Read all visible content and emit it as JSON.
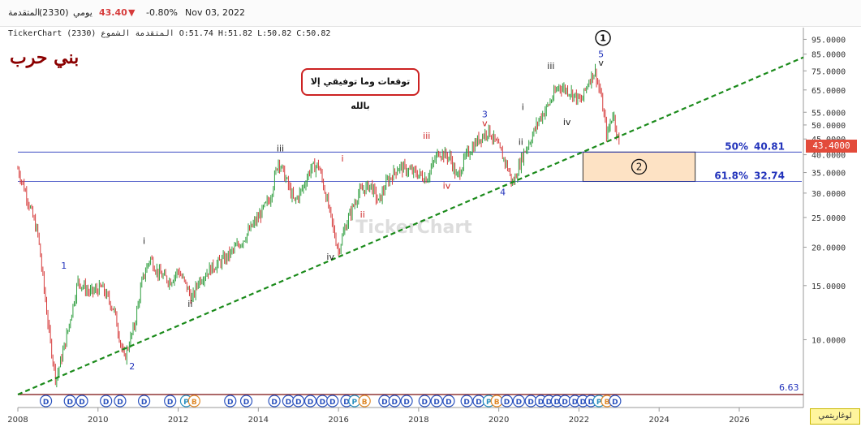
{
  "header": {
    "symbol_name": "المتقدمة",
    "symbol_code": "(2330)",
    "period": "يومي",
    "last_price": "43.40",
    "change_arrow": "▼",
    "change_pct": "-0.80%",
    "date": "Nov 03, 2022"
  },
  "subheader": "TickerChart المتقدمة الشموع (2330) O:51.74 H:51.82 L:50.82 C:50.82",
  "chart_title": "بني حرب",
  "note_box": "توقعات وما توفيقي إلا بالله",
  "watermark": "TickerChart",
  "current_price_tag": "43.4000",
  "log_button": "لوغاريتمي",
  "colors": {
    "up": "#2e9e3e",
    "down": "#d63b3b",
    "trendline": "#1a8a1a",
    "fib_line": "#2233bb",
    "target_box": "#fde2c4",
    "wave_blue": "#2233bb",
    "wave_red": "#cc2222"
  },
  "chart_data": {
    "type": "line",
    "scale": "log",
    "xlim": [
      2008.0,
      2027.6
    ],
    "ylim": [
      6.63,
      100
    ],
    "x_ticks": [
      "2008",
      "2010",
      "2012",
      "2014",
      "2016",
      "2018",
      "2020",
      "2022",
      "2024",
      "2026"
    ],
    "y_ticks": [
      "95.0000",
      "85.0000",
      "75.0000",
      "65.0000",
      "55.0000",
      "50.0000",
      "45.0000",
      "40.0000",
      "35.0000",
      "30.0000",
      "25.0000",
      "20.0000",
      "15.0000",
      "10.0000"
    ],
    "y_min_label": "6.63",
    "series": [
      {
        "values": [
          [
            2008.0,
            36
          ],
          [
            2008.2,
            30
          ],
          [
            2008.5,
            22
          ],
          [
            2008.8,
            10
          ],
          [
            2008.95,
            7.4
          ],
          [
            2009.2,
            10
          ],
          [
            2009.5,
            15.5
          ],
          [
            2009.8,
            14.2
          ],
          [
            2010.1,
            14.8
          ],
          [
            2010.4,
            12.5
          ],
          [
            2010.65,
            8.6
          ],
          [
            2010.9,
            11
          ],
          [
            2011.1,
            15.5
          ],
          [
            2011.3,
            18.5
          ],
          [
            2011.5,
            16.5
          ],
          [
            2011.8,
            15.5
          ],
          [
            2012.0,
            16.8
          ],
          [
            2012.2,
            15.0
          ],
          [
            2012.35,
            13.5
          ],
          [
            2012.5,
            15.5
          ],
          [
            2012.8,
            17.0
          ],
          [
            2013.2,
            18.5
          ],
          [
            2013.6,
            21.0
          ],
          [
            2014.0,
            25.0
          ],
          [
            2014.3,
            29.0
          ],
          [
            2014.5,
            38.5
          ],
          [
            2014.7,
            33.0
          ],
          [
            2014.9,
            28.0
          ],
          [
            2015.1,
            31.0
          ],
          [
            2015.3,
            36.0
          ],
          [
            2015.5,
            37.0
          ],
          [
            2015.7,
            29.0
          ],
          [
            2015.9,
            22.0
          ],
          [
            2016.0,
            19.5
          ],
          [
            2016.2,
            24.0
          ],
          [
            2016.5,
            30.0
          ],
          [
            2016.8,
            32.0
          ],
          [
            2017.0,
            28.0
          ],
          [
            2017.2,
            32.5
          ],
          [
            2017.5,
            36.5
          ],
          [
            2017.9,
            35.0
          ],
          [
            2018.2,
            33.5
          ],
          [
            2018.5,
            41.0
          ],
          [
            2018.8,
            39.0
          ],
          [
            2018.95,
            33.5
          ],
          [
            2019.2,
            40.0
          ],
          [
            2019.5,
            45.0
          ],
          [
            2019.75,
            48.0
          ],
          [
            2020.0,
            42.0
          ],
          [
            2020.2,
            37.0
          ],
          [
            2020.35,
            32.0
          ],
          [
            2020.6,
            40.0
          ],
          [
            2020.8,
            45.0
          ],
          [
            2021.0,
            52.0
          ],
          [
            2021.2,
            57.0
          ],
          [
            2021.5,
            67.0
          ],
          [
            2021.8,
            64.0
          ],
          [
            2022.05,
            59.5
          ],
          [
            2022.25,
            70.0
          ],
          [
            2022.4,
            75.0
          ],
          [
            2022.55,
            62.0
          ],
          [
            2022.7,
            46.0
          ],
          [
            2022.85,
            55.0
          ],
          [
            2023.0,
            43.4
          ]
        ]
      }
    ],
    "trendline": [
      [
        2008.0,
        6.63
      ],
      [
        2027.6,
        83.0
      ]
    ],
    "fib_levels": [
      {
        "label": "50%",
        "value": 40.81,
        "value_label": "40.81"
      },
      {
        "label": "61.8%",
        "value": 32.74,
        "value_label": "32.74"
      }
    ],
    "target_zone": {
      "x0": 2022.1,
      "x1": 2024.9,
      "y0": 32.74,
      "y1": 40.81,
      "label": "2"
    },
    "wave_labels": [
      {
        "text": "1",
        "x": 2009.15,
        "y": 17.0,
        "color": "blue"
      },
      {
        "text": "2",
        "x": 2010.85,
        "y": 8.0,
        "color": "blue"
      },
      {
        "text": "i",
        "x": 2011.15,
        "y": 20.5,
        "color": "black"
      },
      {
        "text": "ii",
        "x": 2012.3,
        "y": 12.8,
        "color": "black"
      },
      {
        "text": "iii",
        "x": 2014.55,
        "y": 41.0,
        "color": "black"
      },
      {
        "text": "iv",
        "x": 2015.8,
        "y": 18.2,
        "color": "black"
      },
      {
        "text": "i",
        "x": 2016.1,
        "y": 38.0,
        "color": "red"
      },
      {
        "text": "ii",
        "x": 2016.6,
        "y": 25.0,
        "color": "red"
      },
      {
        "text": "iii",
        "x": 2018.2,
        "y": 45.0,
        "color": "red"
      },
      {
        "text": "iv",
        "x": 2018.7,
        "y": 31.0,
        "color": "red"
      },
      {
        "text": "3",
        "x": 2019.65,
        "y": 53.0,
        "color": "blue"
      },
      {
        "text": "v",
        "x": 2019.65,
        "y": 49.5,
        "color": "red"
      },
      {
        "text": "4",
        "x": 2020.1,
        "y": 29.5,
        "color": "blue"
      },
      {
        "text": "i",
        "x": 2020.6,
        "y": 56.0,
        "color": "black"
      },
      {
        "text": "ii",
        "x": 2020.55,
        "y": 43.0,
        "color": "black"
      },
      {
        "text": "iii",
        "x": 2021.3,
        "y": 76.0,
        "color": "black"
      },
      {
        "text": "iv",
        "x": 2021.7,
        "y": 50.0,
        "color": "black"
      },
      {
        "text": "5",
        "x": 2022.55,
        "y": 83.0,
        "color": "blue"
      },
      {
        "text": "v",
        "x": 2022.55,
        "y": 78.0,
        "color": "black"
      }
    ],
    "degree_circle": {
      "text": "1",
      "x": 2022.6,
      "y": 96.0
    },
    "event_markers": [
      {
        "x": 2008.7,
        "t": "D"
      },
      {
        "x": 2009.3,
        "t": "D"
      },
      {
        "x": 2009.6,
        "t": "D"
      },
      {
        "x": 2010.2,
        "t": "D"
      },
      {
        "x": 2010.55,
        "t": "D"
      },
      {
        "x": 2011.15,
        "t": "D"
      },
      {
        "x": 2011.8,
        "t": "D"
      },
      {
        "x": 2012.2,
        "t": "P"
      },
      {
        "x": 2012.4,
        "t": "B"
      },
      {
        "x": 2013.3,
        "t": "D"
      },
      {
        "x": 2013.7,
        "t": "D"
      },
      {
        "x": 2014.4,
        "t": "D"
      },
      {
        "x": 2014.75,
        "t": "D"
      },
      {
        "x": 2015.0,
        "t": "D"
      },
      {
        "x": 2015.3,
        "t": "D"
      },
      {
        "x": 2015.6,
        "t": "D"
      },
      {
        "x": 2015.85,
        "t": "D"
      },
      {
        "x": 2016.2,
        "t": "D"
      },
      {
        "x": 2016.4,
        "t": "P"
      },
      {
        "x": 2016.65,
        "t": "B"
      },
      {
        "x": 2017.15,
        "t": "D"
      },
      {
        "x": 2017.4,
        "t": "D"
      },
      {
        "x": 2017.7,
        "t": "D"
      },
      {
        "x": 2018.15,
        "t": "D"
      },
      {
        "x": 2018.45,
        "t": "D"
      },
      {
        "x": 2018.75,
        "t": "D"
      },
      {
        "x": 2019.2,
        "t": "D"
      },
      {
        "x": 2019.5,
        "t": "D"
      },
      {
        "x": 2019.75,
        "t": "P"
      },
      {
        "x": 2019.95,
        "t": "B"
      },
      {
        "x": 2020.2,
        "t": "D"
      },
      {
        "x": 2020.5,
        "t": "D"
      },
      {
        "x": 2020.8,
        "t": "D"
      },
      {
        "x": 2021.05,
        "t": "D"
      },
      {
        "x": 2021.25,
        "t": "D"
      },
      {
        "x": 2021.45,
        "t": "D"
      },
      {
        "x": 2021.65,
        "t": "D"
      },
      {
        "x": 2021.9,
        "t": "D"
      },
      {
        "x": 2022.1,
        "t": "D"
      },
      {
        "x": 2022.3,
        "t": "D"
      },
      {
        "x": 2022.5,
        "t": "P"
      },
      {
        "x": 2022.7,
        "t": "B"
      },
      {
        "x": 2022.9,
        "t": "D"
      }
    ]
  }
}
